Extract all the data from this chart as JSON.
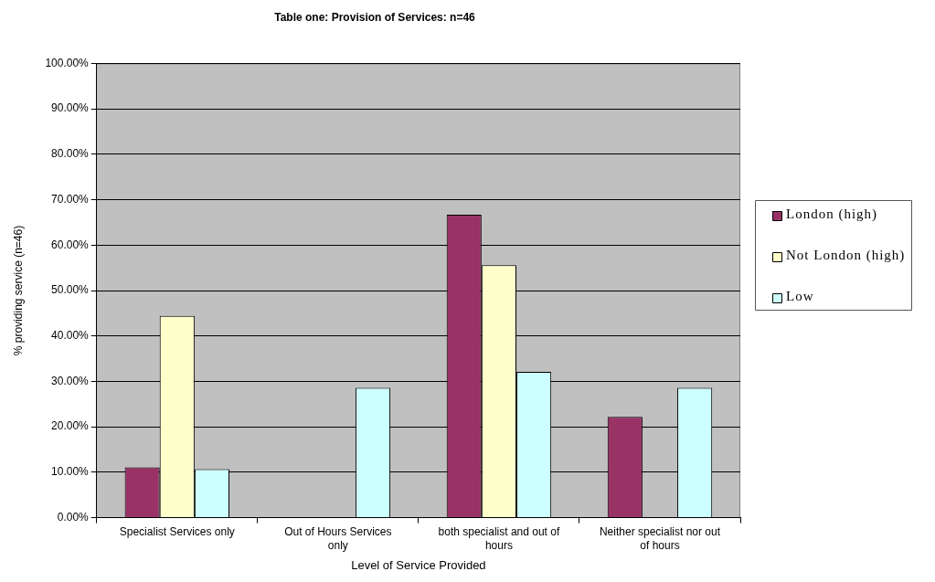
{
  "chart_data": {
    "type": "bar",
    "title": "Table one: Provision of Services: n=46",
    "xlabel": "Level of Service Provided",
    "ylabel": "% providing service (n=46)",
    "categories": [
      "Specialist Services only",
      "Out of Hours Services only",
      "both specialist and out of hours",
      "Neither specialist nor out of hours"
    ],
    "series": [
      {
        "name": "London (high)",
        "color": "#993366",
        "values": [
          11.1,
          0,
          66.7,
          22.2
        ]
      },
      {
        "name": "Not London (high)",
        "color": "#ffffcc",
        "values": [
          44.4,
          0,
          55.6,
          0
        ]
      },
      {
        "name": "Low",
        "color": "#ccffff",
        "values": [
          10.7,
          28.6,
          32.1,
          28.6
        ]
      }
    ],
    "ylim": [
      0,
      100
    ],
    "yticks": [
      {
        "value": 0,
        "label": "0.00%"
      },
      {
        "value": 10,
        "label": "10.00%"
      },
      {
        "value": 20,
        "label": "20.00%"
      },
      {
        "value": 30,
        "label": "30.00%"
      },
      {
        "value": 40,
        "label": "40.00%"
      },
      {
        "value": 50,
        "label": "50.00%"
      },
      {
        "value": 60,
        "label": "60.00%"
      },
      {
        "value": 70,
        "label": "70.00%"
      },
      {
        "value": 80,
        "label": "80.00%"
      },
      {
        "value": 90,
        "label": "90.00%"
      },
      {
        "value": 100,
        "label": "100.00%"
      }
    ],
    "grid": "y",
    "legend": "right"
  }
}
